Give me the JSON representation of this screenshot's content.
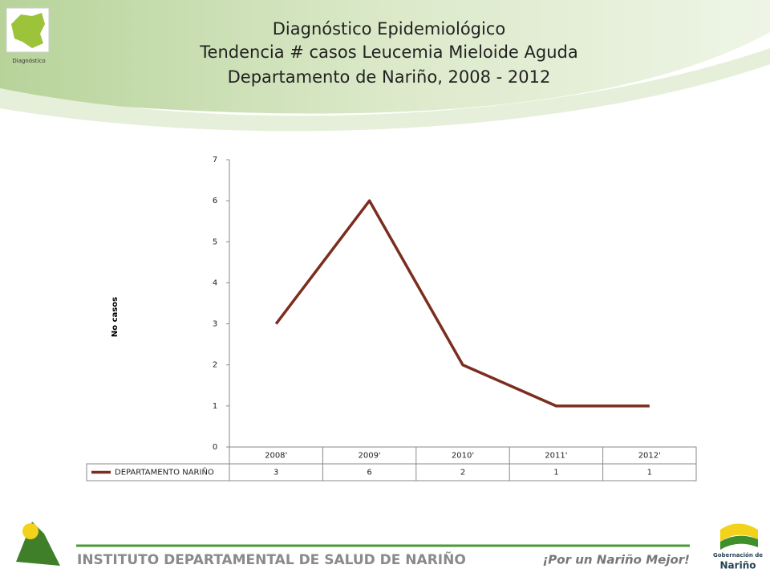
{
  "header": {
    "logo_caption": "Diagnóstico"
  },
  "chart_data": {
    "type": "line",
    "title": [
      "Diagnóstico Epidemiológico",
      "Tendencia # casos Leucemia Mieloide Aguda",
      "Departamento de Nariño,  2008 - 2012"
    ],
    "y_label": "No casos",
    "categories": [
      "2008'",
      "2009'",
      "2010'",
      "2011'",
      "2012'"
    ],
    "series": [
      {
        "name": "DEPARTAMENTO NARIÑO",
        "color": "#7b2e1f",
        "values": [
          3,
          6,
          2,
          1,
          1
        ]
      }
    ],
    "ylim": [
      0,
      7
    ],
    "yticks": [
      0,
      1,
      2,
      3,
      4,
      5,
      6,
      7
    ],
    "grid": false,
    "data_table": true
  },
  "footer": {
    "institute": "INSTITUTO DEPARTAMENTAL DE SALUD DE NARIÑO",
    "slogan": "¡Por un Nariño Mejor!",
    "gov_line1": "Gobernación de",
    "gov_line2": "Nariño"
  }
}
